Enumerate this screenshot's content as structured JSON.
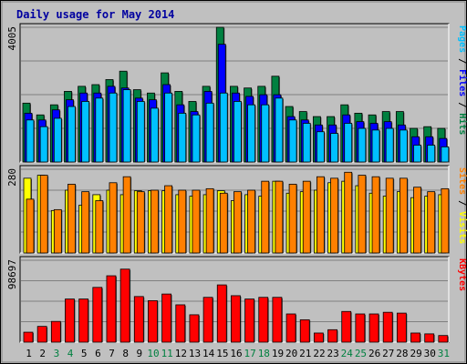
{
  "chart_data": {
    "type": "bar",
    "title": "Daily usage for May 2014",
    "categories": [
      "1",
      "2",
      "3",
      "4",
      "5",
      "6",
      "7",
      "8",
      "9",
      "10",
      "11",
      "12",
      "13",
      "14",
      "15",
      "16",
      "17",
      "18",
      "19",
      "20",
      "21",
      "22",
      "23",
      "24",
      "25",
      "26",
      "27",
      "28",
      "29",
      "30",
      "31"
    ],
    "weekend_days": [
      "3",
      "4",
      "10",
      "11",
      "17",
      "18",
      "24",
      "25",
      "31"
    ],
    "panels": [
      {
        "name": "hits_files_pages",
        "ymax_label": "4005",
        "ylim": [
          0,
          4005
        ],
        "axis_label_parts": [
          {
            "text": "Pages",
            "color": "#00C0FF"
          },
          {
            "text": " / ",
            "color": "#000000"
          },
          {
            "text": "Files",
            "color": "#0000FF"
          },
          {
            "text": " / ",
            "color": "#000000"
          },
          {
            "text": "Hits",
            "color": "#008040"
          }
        ],
        "series": [
          {
            "name": "Hits",
            "color": "#008040",
            "values": [
              1750,
              1400,
              1700,
              2100,
              2250,
              2300,
              2450,
              2700,
              2150,
              2050,
              2650,
              2100,
              1800,
              2250,
              4005,
              2250,
              2200,
              2250,
              2550,
              1650,
              1500,
              1350,
              1350,
              1700,
              1450,
              1400,
              1500,
              1500,
              1000,
              1050,
              1000
            ]
          },
          {
            "name": "Files",
            "color": "#0000FF",
            "values": [
              1450,
              1250,
              1550,
              1850,
              2050,
              2050,
              2250,
              2200,
              1900,
              1850,
              2300,
              1700,
              1500,
              2100,
              3500,
              2050,
              1950,
              2000,
              2000,
              1350,
              1250,
              1100,
              1100,
              1400,
              1200,
              1150,
              1200,
              1100,
              750,
              750,
              700
            ]
          },
          {
            "name": "Pages",
            "color": "#00C0FF",
            "values": [
              1250,
              1050,
              1300,
              1650,
              1800,
              1900,
              2050,
              2150,
              1800,
              1600,
              2050,
              1450,
              1400,
              1750,
              2050,
              1800,
              1700,
              1700,
              1900,
              1250,
              1150,
              900,
              850,
              1150,
              1000,
              950,
              1000,
              950,
              500,
              500,
              450
            ]
          }
        ]
      },
      {
        "name": "sites_visits",
        "ymax_label": "280",
        "ylim": [
          0,
          280
        ],
        "axis_label_parts": [
          {
            "text": "Sites",
            "color": "#FF8000"
          },
          {
            "text": " / ",
            "color": "#000000"
          },
          {
            "text": "Visits",
            "color": "#FFFF00"
          }
        ],
        "series": [
          {
            "name": "Visits",
            "color": "#FFFF00",
            "values": [
              250,
              260,
              142,
              210,
              160,
              195,
              210,
              195,
              208,
              208,
              208,
              195,
              190,
              195,
              208,
              175,
              195,
              190,
              240,
              200,
              205,
              210,
              235,
              240,
              225,
              200,
              190,
              205,
              185,
              190,
              195
            ]
          },
          {
            "name": "Sites",
            "color": "#FF8000",
            "values": [
              180,
              260,
              145,
              230,
              205,
              175,
              235,
              255,
              205,
              210,
              225,
              210,
              210,
              215,
              200,
              205,
              210,
              240,
              240,
              230,
              240,
              255,
              250,
              270,
              260,
              255,
              250,
              250,
              220,
              205,
              215
            ]
          }
        ]
      },
      {
        "name": "kbytes",
        "ymax_label": "98697",
        "ylim": [
          0,
          98697
        ],
        "axis_label_parts": [
          {
            "text": "KBytes",
            "color": "#FF0000"
          }
        ],
        "series": [
          {
            "name": "KBytes",
            "color": "#FF0000",
            "values": [
              12000,
              19000,
              25000,
              52000,
              52000,
              66000,
              80000,
              88000,
              55000,
              50000,
              58000,
              45000,
              33000,
              54000,
              69000,
              56000,
              52000,
              54000,
              54000,
              34000,
              27000,
              11000,
              15000,
              37000,
              34000,
              34000,
              36000,
              35000,
              11000,
              10000,
              8000
            ]
          }
        ]
      }
    ]
  }
}
